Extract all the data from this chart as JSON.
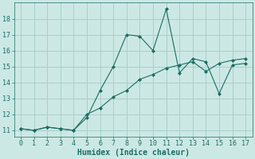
{
  "xlabel": "Humidex (Indice chaleur)",
  "bg_color": "#cce8e4",
  "grid_color": "#aacfcb",
  "line_color": "#1a6e64",
  "line1_x": [
    0,
    1,
    2,
    3,
    4,
    5,
    6,
    7,
    8,
    9,
    10,
    11,
    12,
    13,
    14,
    15,
    16,
    17
  ],
  "line1_y": [
    11.1,
    11.0,
    11.2,
    11.1,
    11.0,
    11.8,
    13.5,
    15.0,
    17.0,
    16.9,
    16.0,
    18.6,
    14.6,
    15.5,
    15.3,
    13.3,
    15.1,
    15.2
  ],
  "line2_x": [
    0,
    1,
    2,
    3,
    4,
    5,
    6,
    7,
    8,
    9,
    10,
    11,
    12,
    13,
    14,
    15,
    16,
    17
  ],
  "line2_y": [
    11.1,
    11.0,
    11.2,
    11.1,
    11.0,
    12.0,
    12.4,
    13.1,
    13.5,
    14.2,
    14.5,
    14.9,
    15.1,
    15.3,
    14.7,
    15.2,
    15.4,
    15.5
  ],
  "xlim": [
    -0.5,
    17.5
  ],
  "ylim": [
    10.6,
    19.0
  ],
  "xticks": [
    0,
    1,
    2,
    3,
    4,
    5,
    6,
    7,
    8,
    9,
    10,
    11,
    12,
    13,
    14,
    15,
    16,
    17
  ],
  "yticks": [
    11,
    12,
    13,
    14,
    15,
    16,
    17,
    18
  ],
  "tick_fontsize": 6.0,
  "xlabel_fontsize": 7.0
}
